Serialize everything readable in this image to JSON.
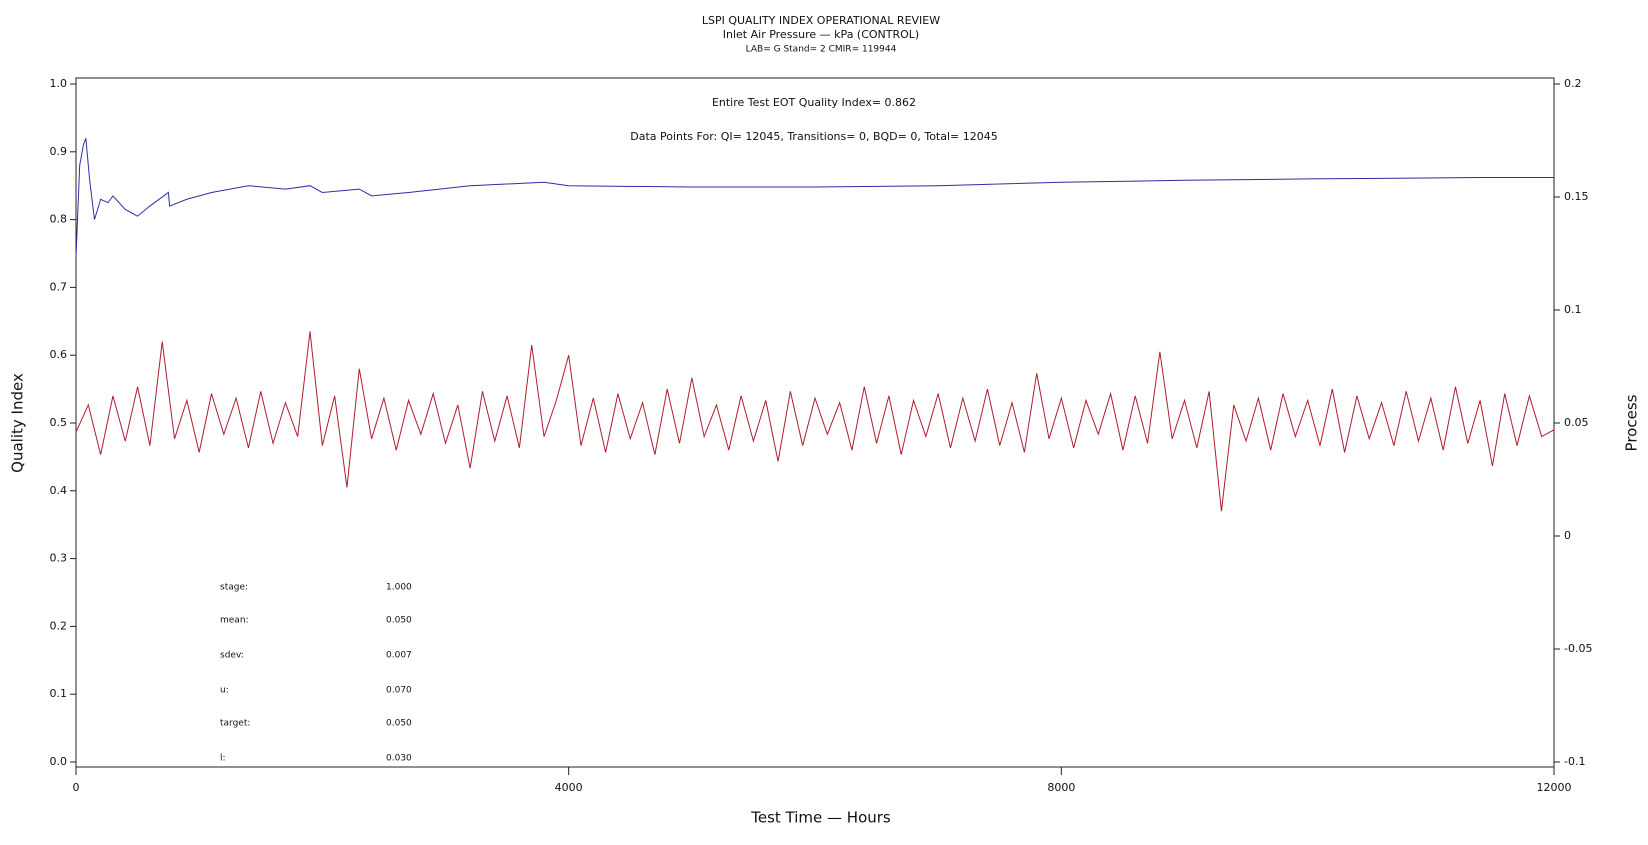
{
  "chart_data": {
    "type": "line",
    "title": "LSPI QUALITY INDEX OPERATIONAL REVIEW",
    "subtitle": "Inlet Air Pressure — kPa (CONTROL)",
    "subtitle2": "LAB= G Stand= 2 CMIR= 119944",
    "annotations": [
      "Entire Test EOT Quality Index=   0.862",
      "Data Points For: QI= 12045, Transitions=     0, BQD=     0, Total= 12045"
    ],
    "stats": [
      {
        "label": "stage:",
        "value": "1.000"
      },
      {
        "label": "mean:",
        "value": "0.050"
      },
      {
        "label": "sdev:",
        "value": "0.007"
      },
      {
        "label": "u:",
        "value": "0.070"
      },
      {
        "label": "target:",
        "value": "0.050"
      },
      {
        "label": "l:",
        "value": "0.030"
      }
    ],
    "xlabel": "Test Time — Hours",
    "ylabel": "Quality Index",
    "y2label": "Process",
    "xlim": [
      0,
      12000
    ],
    "xticks": [
      0,
      4000,
      8000,
      12000
    ],
    "ylim": [
      0,
      1
    ],
    "yticks": [
      {
        "value": 0,
        "label": "0.0"
      },
      0.1,
      0.2,
      0.3,
      0.4,
      0.5,
      0.6,
      0.7,
      0.8,
      0.9,
      {
        "value": 1,
        "label": "1.0"
      }
    ],
    "y2lim": [
      -0.1,
      0.2
    ],
    "y2ticks": [
      -0.1,
      -0.05,
      0,
      0.05,
      0.1,
      0.15,
      0.2
    ],
    "series": [
      {
        "color": "#2e2ea6",
        "x": [
          0,
          30,
          60,
          80,
          110,
          150,
          200,
          260,
          300,
          400,
          500,
          600,
          750,
          760,
          900,
          1100,
          1400,
          1700,
          1900,
          2000,
          2300,
          2400,
          2700,
          3200,
          3800,
          4000,
          5000,
          6000,
          7000,
          8000,
          9000,
          10000,
          11400,
          12000
        ],
        "values": [
          0.745,
          0.88,
          0.91,
          0.92,
          0.86,
          0.8,
          0.83,
          0.825,
          0.835,
          0.815,
          0.805,
          0.82,
          0.84,
          0.82,
          0.83,
          0.84,
          0.85,
          0.845,
          0.85,
          0.84,
          0.845,
          0.835,
          0.84,
          0.85,
          0.855,
          0.85,
          0.848,
          0.848,
          0.85,
          0.855,
          0.858,
          0.86,
          0.862,
          0.862
        ]
      },
      {
        "color": "#b01c2e",
        "axis": "y2",
        "x": [
          0,
          100,
          200,
          300,
          400,
          500,
          600,
          700,
          800,
          900,
          1000,
          1100,
          1200,
          1300,
          1400,
          1500,
          1600,
          1700,
          1800,
          1900,
          2000,
          2100,
          2200,
          2300,
          2400,
          2500,
          2600,
          2700,
          2800,
          2900,
          3000,
          3100,
          3200,
          3300,
          3400,
          3500,
          3600,
          3700,
          3800,
          3900,
          4000,
          4100,
          4200,
          4300,
          4400,
          4500,
          4600,
          4700,
          4800,
          4900,
          5000,
          5100,
          5200,
          5300,
          5400,
          5500,
          5600,
          5700,
          5800,
          5900,
          6000,
          6100,
          6200,
          6300,
          6400,
          6500,
          6600,
          6700,
          6800,
          6900,
          7000,
          7100,
          7200,
          7300,
          7400,
          7500,
          7600,
          7700,
          7800,
          7900,
          8000,
          8100,
          8200,
          8300,
          8400,
          8500,
          8600,
          8700,
          8800,
          8900,
          9000,
          9100,
          9200,
          9300,
          9400,
          9500,
          9600,
          9700,
          9800,
          9900,
          10000,
          10100,
          10200,
          10300,
          10400,
          10500,
          10600,
          10700,
          10800,
          10900,
          11000,
          11100,
          11200,
          11300,
          11400,
          11500,
          11600,
          11700,
          11800,
          11900,
          12000
        ],
        "values": [
          0.046,
          0.058,
          0.036,
          0.062,
          0.042,
          0.066,
          0.04,
          0.086,
          0.043,
          0.06,
          0.037,
          0.063,
          0.045,
          0.061,
          0.039,
          0.064,
          0.041,
          0.059,
          0.044,
          0.0905,
          0.04,
          0.062,
          0.0215,
          0.074,
          0.043,
          0.061,
          0.038,
          0.06,
          0.045,
          0.063,
          0.041,
          0.058,
          0.03,
          0.064,
          0.042,
          0.062,
          0.039,
          0.0845,
          0.044,
          0.06,
          0.08,
          0.04,
          0.061,
          0.037,
          0.063,
          0.043,
          0.059,
          0.036,
          0.065,
          0.041,
          0.07,
          0.044,
          0.058,
          0.038,
          0.062,
          0.042,
          0.06,
          0.033,
          0.064,
          0.04,
          0.061,
          0.045,
          0.059,
          0.038,
          0.066,
          0.041,
          0.062,
          0.036,
          0.06,
          0.044,
          0.063,
          0.039,
          0.061,
          0.042,
          0.065,
          0.04,
          0.059,
          0.037,
          0.072,
          0.043,
          0.061,
          0.039,
          0.06,
          0.045,
          0.063,
          0.038,
          0.062,
          0.041,
          0.0815,
          0.043,
          0.06,
          0.039,
          0.064,
          0.011,
          0.058,
          0.042,
          0.061,
          0.038,
          0.063,
          0.044,
          0.06,
          0.04,
          0.065,
          0.037,
          0.062,
          0.043,
          0.059,
          0.04,
          0.064,
          0.042,
          0.061,
          0.038,
          0.066,
          0.041,
          0.06,
          0.031,
          0.063,
          0.04,
          0.062,
          0.044,
          0.047
        ]
      }
    ]
  }
}
